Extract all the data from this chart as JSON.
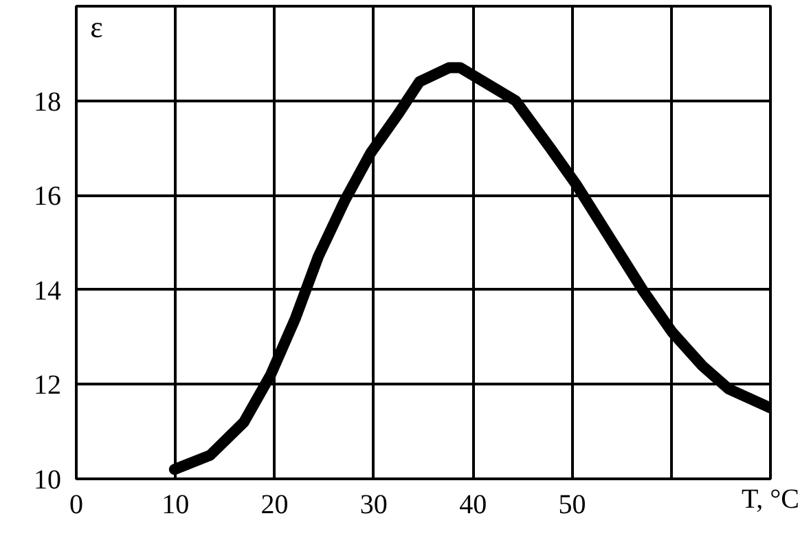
{
  "chart_data": {
    "type": "line",
    "xlabel": "T, °C",
    "ylabel": "ε",
    "x": [
      9.9,
      13.5,
      16.9,
      19.6,
      22.1,
      24.4,
      27.1,
      29.7,
      32.4,
      34.6,
      37.6,
      38.7,
      44.3,
      47.8,
      50.5,
      53.5,
      57.1,
      60.1,
      63.1,
      65.8,
      70.0
    ],
    "series": [
      {
        "color": "#000000",
        "values": [
          10.2,
          10.5,
          11.2,
          12.2,
          13.4,
          14.7,
          15.9,
          16.9,
          17.7,
          18.4,
          18.7,
          18.7,
          18.0,
          17.0,
          16.2,
          15.2,
          14.0,
          13.1,
          12.4,
          11.9,
          11.5
        ]
      }
    ],
    "xlim": [
      0,
      70
    ],
    "ylim": [
      10,
      20
    ],
    "xticks": [
      0,
      10,
      20,
      30,
      40,
      50,
      {
        "value": 60,
        "label": null
      }
    ],
    "yticks": [
      10,
      12,
      14,
      16,
      18
    ],
    "grid": true,
    "line_style": "solid"
  }
}
